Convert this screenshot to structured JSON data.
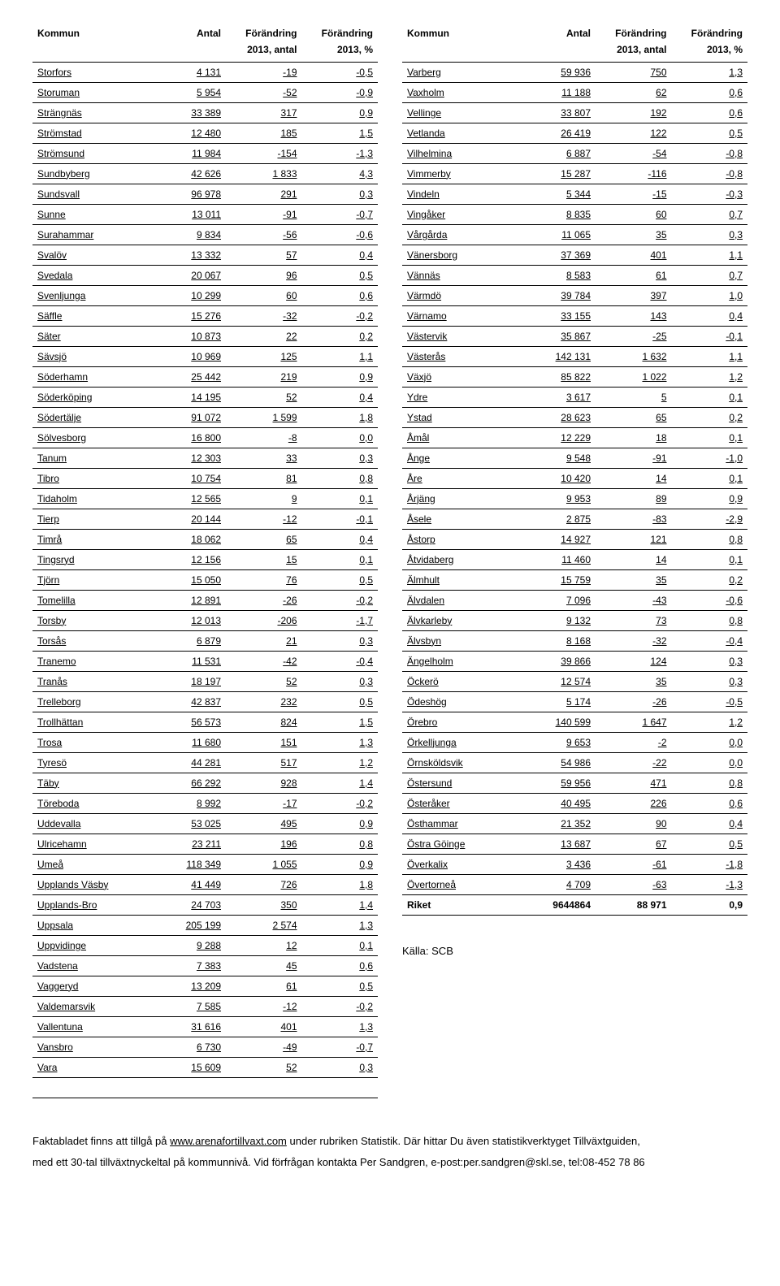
{
  "columns": {
    "kommun": "Kommun",
    "antal": "Antal",
    "forandring": "Förändring",
    "sub_antal": "2013, antal",
    "sub_pct": "2013, %"
  },
  "colors": {
    "bg": "#ffffff",
    "text": "#000000",
    "border": "#000000"
  },
  "left_rows": [
    [
      "Storfors",
      "4 131",
      "-19",
      "-0,5"
    ],
    [
      "Storuman",
      "5 954",
      "-52",
      "-0,9"
    ],
    [
      "Strängnäs",
      "33 389",
      "317",
      "0,9"
    ],
    [
      "Strömstad",
      "12 480",
      "185",
      "1,5"
    ],
    [
      "Strömsund",
      "11 984",
      "-154",
      "-1,3"
    ],
    [
      "Sundbyberg",
      "42 626",
      "1 833",
      "4,3"
    ],
    [
      "Sundsvall",
      "96 978",
      "291",
      "0,3"
    ],
    [
      "Sunne",
      "13 011",
      "-91",
      "-0,7"
    ],
    [
      "Surahammar",
      "9 834",
      "-56",
      "-0,6"
    ],
    [
      "Svalöv",
      "13 332",
      "57",
      "0,4"
    ],
    [
      "Svedala",
      "20 067",
      "96",
      "0,5"
    ],
    [
      "Svenljunga",
      "10 299",
      "60",
      "0,6"
    ],
    [
      "Säffle",
      "15 276",
      "-32",
      "-0,2"
    ],
    [
      "Säter",
      "10 873",
      "22",
      "0,2"
    ],
    [
      "Sävsjö",
      "10 969",
      "125",
      "1,1"
    ],
    [
      "Söderhamn",
      "25 442",
      "219",
      "0,9"
    ],
    [
      "Söderköping",
      "14 195",
      "52",
      "0,4"
    ],
    [
      "Södertälje",
      "91 072",
      "1 599",
      "1,8"
    ],
    [
      "Sölvesborg",
      "16 800",
      "-8",
      "0,0"
    ],
    [
      "Tanum",
      "12 303",
      "33",
      "0,3"
    ],
    [
      "Tibro",
      "10 754",
      "81",
      "0,8"
    ],
    [
      "Tidaholm",
      "12 565",
      "9",
      "0,1"
    ],
    [
      "Tierp",
      "20 144",
      "-12",
      "-0,1"
    ],
    [
      "Timrå",
      "18 062",
      "65",
      "0,4"
    ],
    [
      "Tingsryd",
      "12 156",
      "15",
      "0,1"
    ],
    [
      "Tjörn",
      "15 050",
      "76",
      "0,5"
    ],
    [
      "Tomelilla",
      "12 891",
      "-26",
      "-0,2"
    ],
    [
      "Torsby",
      "12 013",
      "-206",
      "-1,7"
    ],
    [
      "Torsås",
      "6 879",
      "21",
      "0,3"
    ],
    [
      "Tranemo",
      "11 531",
      "-42",
      "-0,4"
    ],
    [
      "Tranås",
      "18 197",
      "52",
      "0,3"
    ],
    [
      "Trelleborg",
      "42 837",
      "232",
      "0,5"
    ],
    [
      "Trollhättan",
      "56 573",
      "824",
      "1,5"
    ],
    [
      "Trosa",
      "11 680",
      "151",
      "1,3"
    ],
    [
      "Tyresö",
      "44 281",
      "517",
      "1,2"
    ],
    [
      "Täby",
      "66 292",
      "928",
      "1,4"
    ],
    [
      "Töreboda",
      "8 992",
      "-17",
      "-0,2"
    ],
    [
      "Uddevalla",
      "53 025",
      "495",
      "0,9"
    ],
    [
      "Ulricehamn",
      "23 211",
      "196",
      "0,8"
    ],
    [
      "Umeå",
      "118 349",
      "1 055",
      "0,9"
    ],
    [
      "Upplands Väsby",
      "41 449",
      "726",
      "1,8"
    ],
    [
      "Upplands-Bro",
      "24 703",
      "350",
      "1,4"
    ],
    [
      "Uppsala",
      "205 199",
      "2 574",
      "1,3"
    ],
    [
      "Uppvidinge",
      "9 288",
      "12",
      "0,1"
    ],
    [
      "Vadstena",
      "7 383",
      "45",
      "0,6"
    ],
    [
      "Vaggeryd",
      "13 209",
      "61",
      "0,5"
    ],
    [
      "Valdemarsvik",
      "7 585",
      "-12",
      "-0,2"
    ],
    [
      "Vallentuna",
      "31 616",
      "401",
      "1,3"
    ],
    [
      "Vansbro",
      "6 730",
      "-49",
      "-0,7"
    ],
    [
      "Vara",
      "15 609",
      "52",
      "0,3"
    ]
  ],
  "right_rows": [
    [
      "Varberg",
      "59 936",
      "750",
      "1,3"
    ],
    [
      "Vaxholm",
      "11 188",
      "62",
      "0,6"
    ],
    [
      "Vellinge",
      "33 807",
      "192",
      "0,6"
    ],
    [
      "Vetlanda",
      "26 419",
      "122",
      "0,5"
    ],
    [
      "Vilhelmina",
      "6 887",
      "-54",
      "-0,8"
    ],
    [
      "Vimmerby",
      "15 287",
      "-116",
      "-0,8"
    ],
    [
      "Vindeln",
      "5 344",
      "-15",
      "-0,3"
    ],
    [
      "Vingåker",
      "8 835",
      "60",
      "0,7"
    ],
    [
      "Vårgårda",
      "11 065",
      "35",
      "0,3"
    ],
    [
      "Vänersborg",
      "37 369",
      "401",
      "1,1"
    ],
    [
      "Vännäs",
      "8 583",
      "61",
      "0,7"
    ],
    [
      "Värmdö",
      "39 784",
      "397",
      "1,0"
    ],
    [
      "Värnamo",
      "33 155",
      "143",
      "0,4"
    ],
    [
      "Västervik",
      "35 867",
      "-25",
      "-0,1"
    ],
    [
      "Västerås",
      "142 131",
      "1 632",
      "1,1"
    ],
    [
      "Växjö",
      "85 822",
      "1 022",
      "1,2"
    ],
    [
      "Ydre",
      "3 617",
      "5",
      "0,1"
    ],
    [
      "Ystad",
      "28 623",
      "65",
      "0,2"
    ],
    [
      "Åmål",
      "12 229",
      "18",
      "0,1"
    ],
    [
      "Ånge",
      "9 548",
      "-91",
      "-1,0"
    ],
    [
      "Åre",
      "10 420",
      "14",
      "0,1"
    ],
    [
      "Årjäng",
      "9 953",
      "89",
      "0,9"
    ],
    [
      "Åsele",
      "2 875",
      "-83",
      "-2,9"
    ],
    [
      "Åstorp",
      "14 927",
      "121",
      "0,8"
    ],
    [
      "Åtvidaberg",
      "11 460",
      "14",
      "0,1"
    ],
    [
      "Älmhult",
      "15 759",
      "35",
      "0,2"
    ],
    [
      "Älvdalen",
      "7 096",
      "-43",
      "-0,6"
    ],
    [
      "Älvkarleby",
      "9 132",
      "73",
      "0,8"
    ],
    [
      "Älvsbyn",
      "8 168",
      "-32",
      "-0,4"
    ],
    [
      "Ängelholm",
      "39 866",
      "124",
      "0,3"
    ],
    [
      "Öckerö",
      "12 574",
      "35",
      "0,3"
    ],
    [
      "Ödeshög",
      "5 174",
      "-26",
      "-0,5"
    ],
    [
      "Örebro",
      "140 599",
      "1 647",
      "1,2"
    ],
    [
      "Örkelljunga",
      "9 653",
      "-2",
      "0,0"
    ],
    [
      "Örnsköldsvik",
      "54 986",
      "-22",
      "0,0"
    ],
    [
      "Östersund",
      "59 956",
      "471",
      "0,8"
    ],
    [
      "Österåker",
      "40 495",
      "226",
      "0,6"
    ],
    [
      "Östhammar",
      "21 352",
      "90",
      "0,4"
    ],
    [
      "Östra Göinge",
      "13 687",
      "67",
      "0,5"
    ],
    [
      "Överkalix",
      "3 436",
      "-61",
      "-1,8"
    ],
    [
      "Övertorneå",
      "4 709",
      "-63",
      "-1,3"
    ]
  ],
  "riket_row": [
    "Riket",
    "9644864",
    "88 971",
    "0,9"
  ],
  "source_label": "Källa: SCB",
  "footer": {
    "t1": "Faktabladet finns att tillgå på ",
    "link": "www.arenafortillvaxt.com",
    "t2": " under rubriken Statistik. Där hittar Du även statistikverktyget Tillväxtguiden,",
    "t3": "med ett 30-tal tillväxtnyckeltal på kommunnivå. Vid förfrågan kontakta Per Sandgren, e-post:per.sandgren@skl.se, tel:08-452 78 86"
  }
}
